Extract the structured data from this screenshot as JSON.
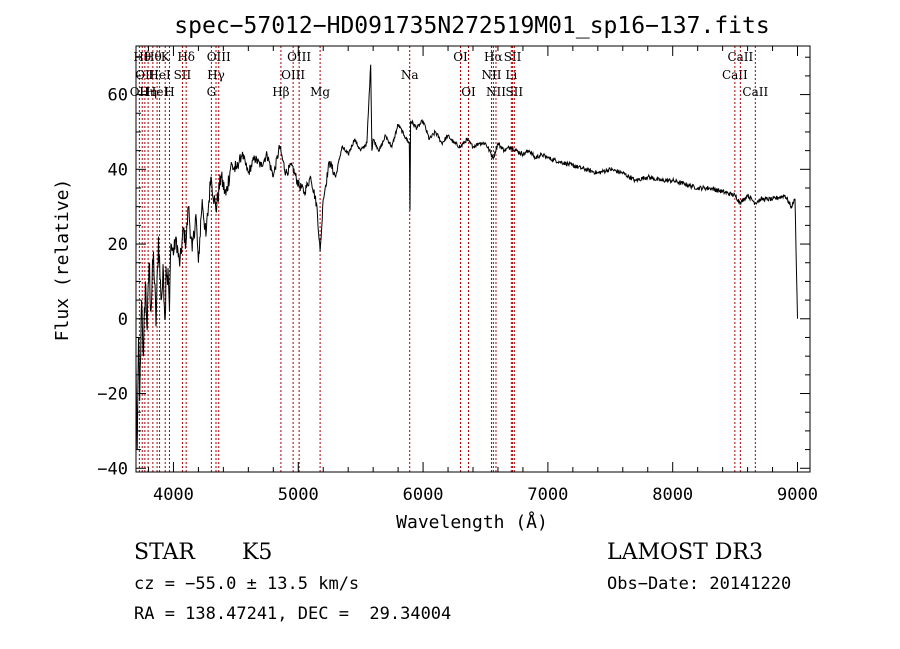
{
  "chart_data": {
    "type": "line",
    "title": "spec−57012−HD091735N272519M01_sp16−137.fits",
    "xlabel": "Wavelength (Å)",
    "ylabel": "Flux (relative)",
    "xlim": [
      3700,
      9100
    ],
    "ylim": [
      -41,
      73
    ],
    "xticks": [
      4000,
      5000,
      6000,
      7000,
      8000,
      9000
    ],
    "xtick_labels": [
      "4000",
      "5000",
      "6000",
      "7000",
      "8000",
      "9000"
    ],
    "yticks": [
      -40,
      -20,
      0,
      20,
      40,
      60
    ],
    "ytick_labels": [
      "−40",
      "−20",
      "0",
      "20",
      "40",
      "60"
    ],
    "series": [
      {
        "name": "flux",
        "x": [
          3700,
          3710,
          3720,
          3730,
          3745,
          3760,
          3775,
          3790,
          3805,
          3820,
          3840,
          3860,
          3880,
          3900,
          3920,
          3934,
          3940,
          3960,
          3968,
          3980,
          4000,
          4020,
          4050,
          4080,
          4100,
          4120,
          4150,
          4180,
          4200,
          4230,
          4260,
          4300,
          4340,
          4380,
          4420,
          4460,
          4500,
          4550,
          4600,
          4650,
          4700,
          4750,
          4800,
          4850,
          4900,
          4950,
          5000,
          5050,
          5100,
          5150,
          5175,
          5184,
          5200,
          5250,
          5300,
          5350,
          5400,
          5450,
          5500,
          5550,
          5580,
          5590,
          5600,
          5650,
          5700,
          5750,
          5800,
          5850,
          5890,
          5895,
          5900,
          5950,
          6000,
          6050,
          6100,
          6150,
          6200,
          6250,
          6300,
          6350,
          6400,
          6450,
          6500,
          6563,
          6600,
          6650,
          6700,
          6750,
          6800,
          6850,
          6900,
          6950,
          7000,
          7100,
          7200,
          7300,
          7400,
          7500,
          7600,
          7700,
          7800,
          7900,
          8000,
          8100,
          8200,
          8300,
          8400,
          8500,
          8542,
          8600,
          8662,
          8700,
          8800,
          8900,
          8950,
          8980,
          9000
        ],
        "y": [
          -12,
          -35,
          -5,
          -22,
          5,
          -10,
          10,
          -3,
          15,
          2,
          18,
          -2,
          22,
          5,
          12,
          0,
          14,
          10,
          2,
          20,
          17,
          22,
          14,
          24,
          20,
          30,
          18,
          28,
          15,
          32,
          22,
          38,
          29,
          38,
          33,
          41,
          40,
          44,
          39,
          43,
          41,
          44,
          38,
          46,
          39,
          41,
          36,
          34,
          38,
          30,
          18,
          22,
          32,
          42,
          38,
          46,
          44,
          48,
          45,
          47,
          68,
          45,
          48,
          45,
          49,
          46,
          52,
          49,
          47,
          29,
          53,
          51,
          53,
          48,
          50,
          47,
          49,
          47,
          46,
          48,
          46,
          47,
          47,
          43,
          47,
          45,
          46,
          45,
          44,
          45,
          43,
          44,
          43,
          42,
          41,
          40,
          39,
          40,
          39,
          37,
          38,
          37,
          37,
          36,
          35,
          35,
          34,
          33,
          31,
          33,
          31,
          32,
          32,
          33,
          30,
          32,
          0
        ]
      }
    ],
    "line_marks": [
      {
        "x": 3727,
        "row": 2,
        "label": "OII"
      },
      {
        "x": 3750,
        "row": 0,
        "label": "Hθ"
      },
      {
        "x": 3771,
        "row": 1,
        "label": "OII"
      },
      {
        "x": 3797,
        "row": 2,
        "label": "Hη"
      },
      {
        "x": 3835,
        "row": 0,
        "label": "Hθ"
      },
      {
        "x": 3869,
        "row": 2,
        "label": "HeI"
      },
      {
        "x": 3889,
        "row": 1,
        "label": "HeI"
      },
      {
        "x": 3934,
        "row": 0,
        "label": "K"
      },
      {
        "x": 3968,
        "row": 2,
        "label": "H"
      },
      {
        "x": 4072,
        "row": 1,
        "label": "SII"
      },
      {
        "x": 4102,
        "row": 0,
        "label": "Hδ"
      },
      {
        "x": 4304,
        "row": 2,
        "label": "G"
      },
      {
        "x": 4341,
        "row": 1,
        "label": "Hγ"
      },
      {
        "x": 4363,
        "row": 0,
        "label": "OIII"
      },
      {
        "x": 4861,
        "row": 2,
        "label": "Hβ"
      },
      {
        "x": 4959,
        "row": 1,
        "label": "OIII"
      },
      {
        "x": 5007,
        "row": 0,
        "label": "OIII"
      },
      {
        "x": 5175,
        "row": 2,
        "label": "Mg"
      },
      {
        "x": 5893,
        "row": 1,
        "label": "Na"
      },
      {
        "x": 6300,
        "row": 0,
        "label": "OI"
      },
      {
        "x": 6364,
        "row": 2,
        "label": "OI"
      },
      {
        "x": 6548,
        "row": 1,
        "label": "NII"
      },
      {
        "x": 6563,
        "row": 0,
        "label": "Hα"
      },
      {
        "x": 6584,
        "row": 2,
        "label": "NII"
      },
      {
        "x": 6707,
        "row": 1,
        "label": "Li"
      },
      {
        "x": 6717,
        "row": 0,
        "label": "SII"
      },
      {
        "x": 6731,
        "row": 2,
        "label": "SII"
      },
      {
        "x": 8498,
        "row": 1,
        "label": "CaII"
      },
      {
        "x": 8542,
        "row": 0,
        "label": "CaII"
      },
      {
        "x": 8662,
        "row": 2,
        "label": "CaII"
      }
    ],
    "line_color": "#000000",
    "mark_color": "#aa0000"
  },
  "info": {
    "object_class": "STAR",
    "subclass": "K5",
    "survey": "LAMOST DR3",
    "redshift_text": "cz = −55.0 ± 13.5 km/s",
    "obs_date_text": "Obs−Date: 20141220",
    "coords_text": "RA = 138.47241, DEC =  29.34004"
  }
}
